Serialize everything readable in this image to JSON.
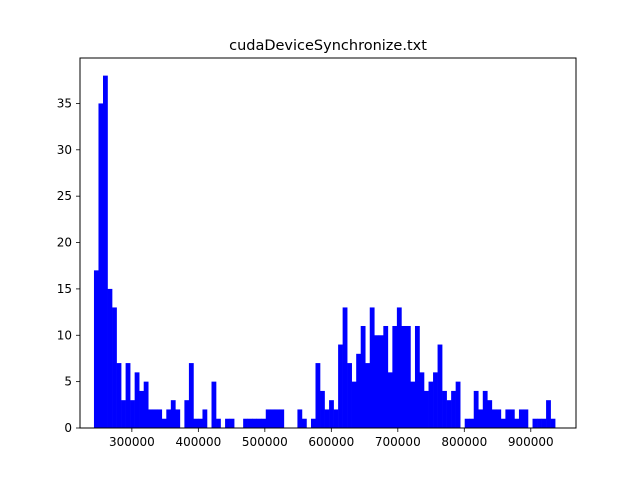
{
  "chart_data": {
    "type": "bar",
    "title": "cudaDeviceSynchronize.txt",
    "xlabel": "",
    "ylabel": "",
    "bar_color": "#0000ff",
    "xlim": [
      222000,
      968000
    ],
    "ylim": [
      0,
      39.9
    ],
    "grid": false,
    "bin_start": 243000,
    "bin_width": 6800,
    "values": [
      17,
      35,
      38,
      15,
      13,
      7,
      3,
      7,
      3,
      6,
      4,
      5,
      2,
      2,
      2,
      1,
      2,
      3,
      2,
      0,
      3,
      7,
      1,
      1,
      2,
      0,
      5,
      1,
      0,
      1,
      1,
      0,
      0,
      1,
      1,
      1,
      1,
      1,
      2,
      2,
      2,
      2,
      0,
      0,
      0,
      2,
      1,
      0,
      1,
      7,
      4,
      2,
      3,
      2,
      9,
      13,
      7,
      5,
      8,
      11,
      7,
      13,
      10,
      10,
      11,
      6,
      11,
      13,
      11,
      11,
      5,
      11,
      6,
      4,
      5,
      6,
      9,
      4,
      3,
      4,
      5,
      0,
      1,
      1,
      4,
      2,
      4,
      3,
      2,
      2,
      1,
      2,
      2,
      1,
      2,
      2,
      0,
      1,
      1,
      1,
      3,
      1
    ],
    "x_ticks": [
      300000,
      400000,
      500000,
      600000,
      700000,
      800000,
      900000
    ],
    "x_tick_labels": [
      "300000",
      "400000",
      "500000",
      "600000",
      "700000",
      "800000",
      "900000"
    ],
    "y_ticks": [
      0,
      5,
      10,
      15,
      20,
      25,
      30,
      35
    ],
    "y_tick_labels": [
      "0",
      "5",
      "10",
      "15",
      "20",
      "25",
      "30",
      "35"
    ]
  }
}
